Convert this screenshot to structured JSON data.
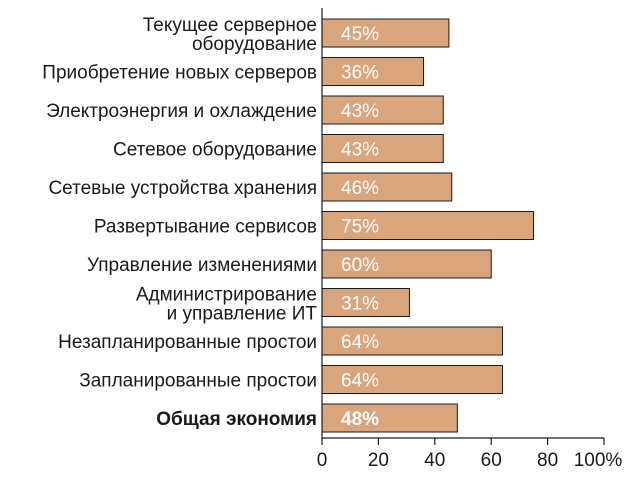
{
  "chart_data": {
    "type": "bar",
    "orientation": "horizontal",
    "categories": [
      [
        "Текущее серверное",
        "оборудование"
      ],
      [
        "Приобретение новых серверов"
      ],
      [
        "Электроэнергия и охлаждение"
      ],
      [
        "Сетевое оборудование"
      ],
      [
        "Сетевые устройства хранения"
      ],
      [
        "Развертывание сервисов"
      ],
      [
        "Управление изменениями"
      ],
      [
        "Администрирование",
        "и управление ИТ"
      ],
      [
        "Незапланированные простои"
      ],
      [
        "Запланированные простои"
      ],
      [
        "Общая экономия"
      ]
    ],
    "values": [
      45,
      36,
      43,
      43,
      46,
      75,
      60,
      31,
      64,
      64,
      48
    ],
    "value_labels": [
      "45%",
      "36%",
      "43%",
      "43%",
      "46%",
      "75%",
      "60%",
      "31%",
      "64%",
      "64%",
      "48%"
    ],
    "bold_categories": [
      10
    ],
    "xlim": [
      0,
      100
    ],
    "x_ticks": [
      0,
      20,
      40,
      60,
      80,
      100
    ],
    "x_tick_labels": [
      "0",
      "20",
      "40",
      "60",
      "80",
      "100%"
    ],
    "grid": false,
    "bar_color": "#d9a57c",
    "bar_edge_color": "#1a1a1a",
    "title": "",
    "xlabel": "",
    "ylabel": ""
  }
}
